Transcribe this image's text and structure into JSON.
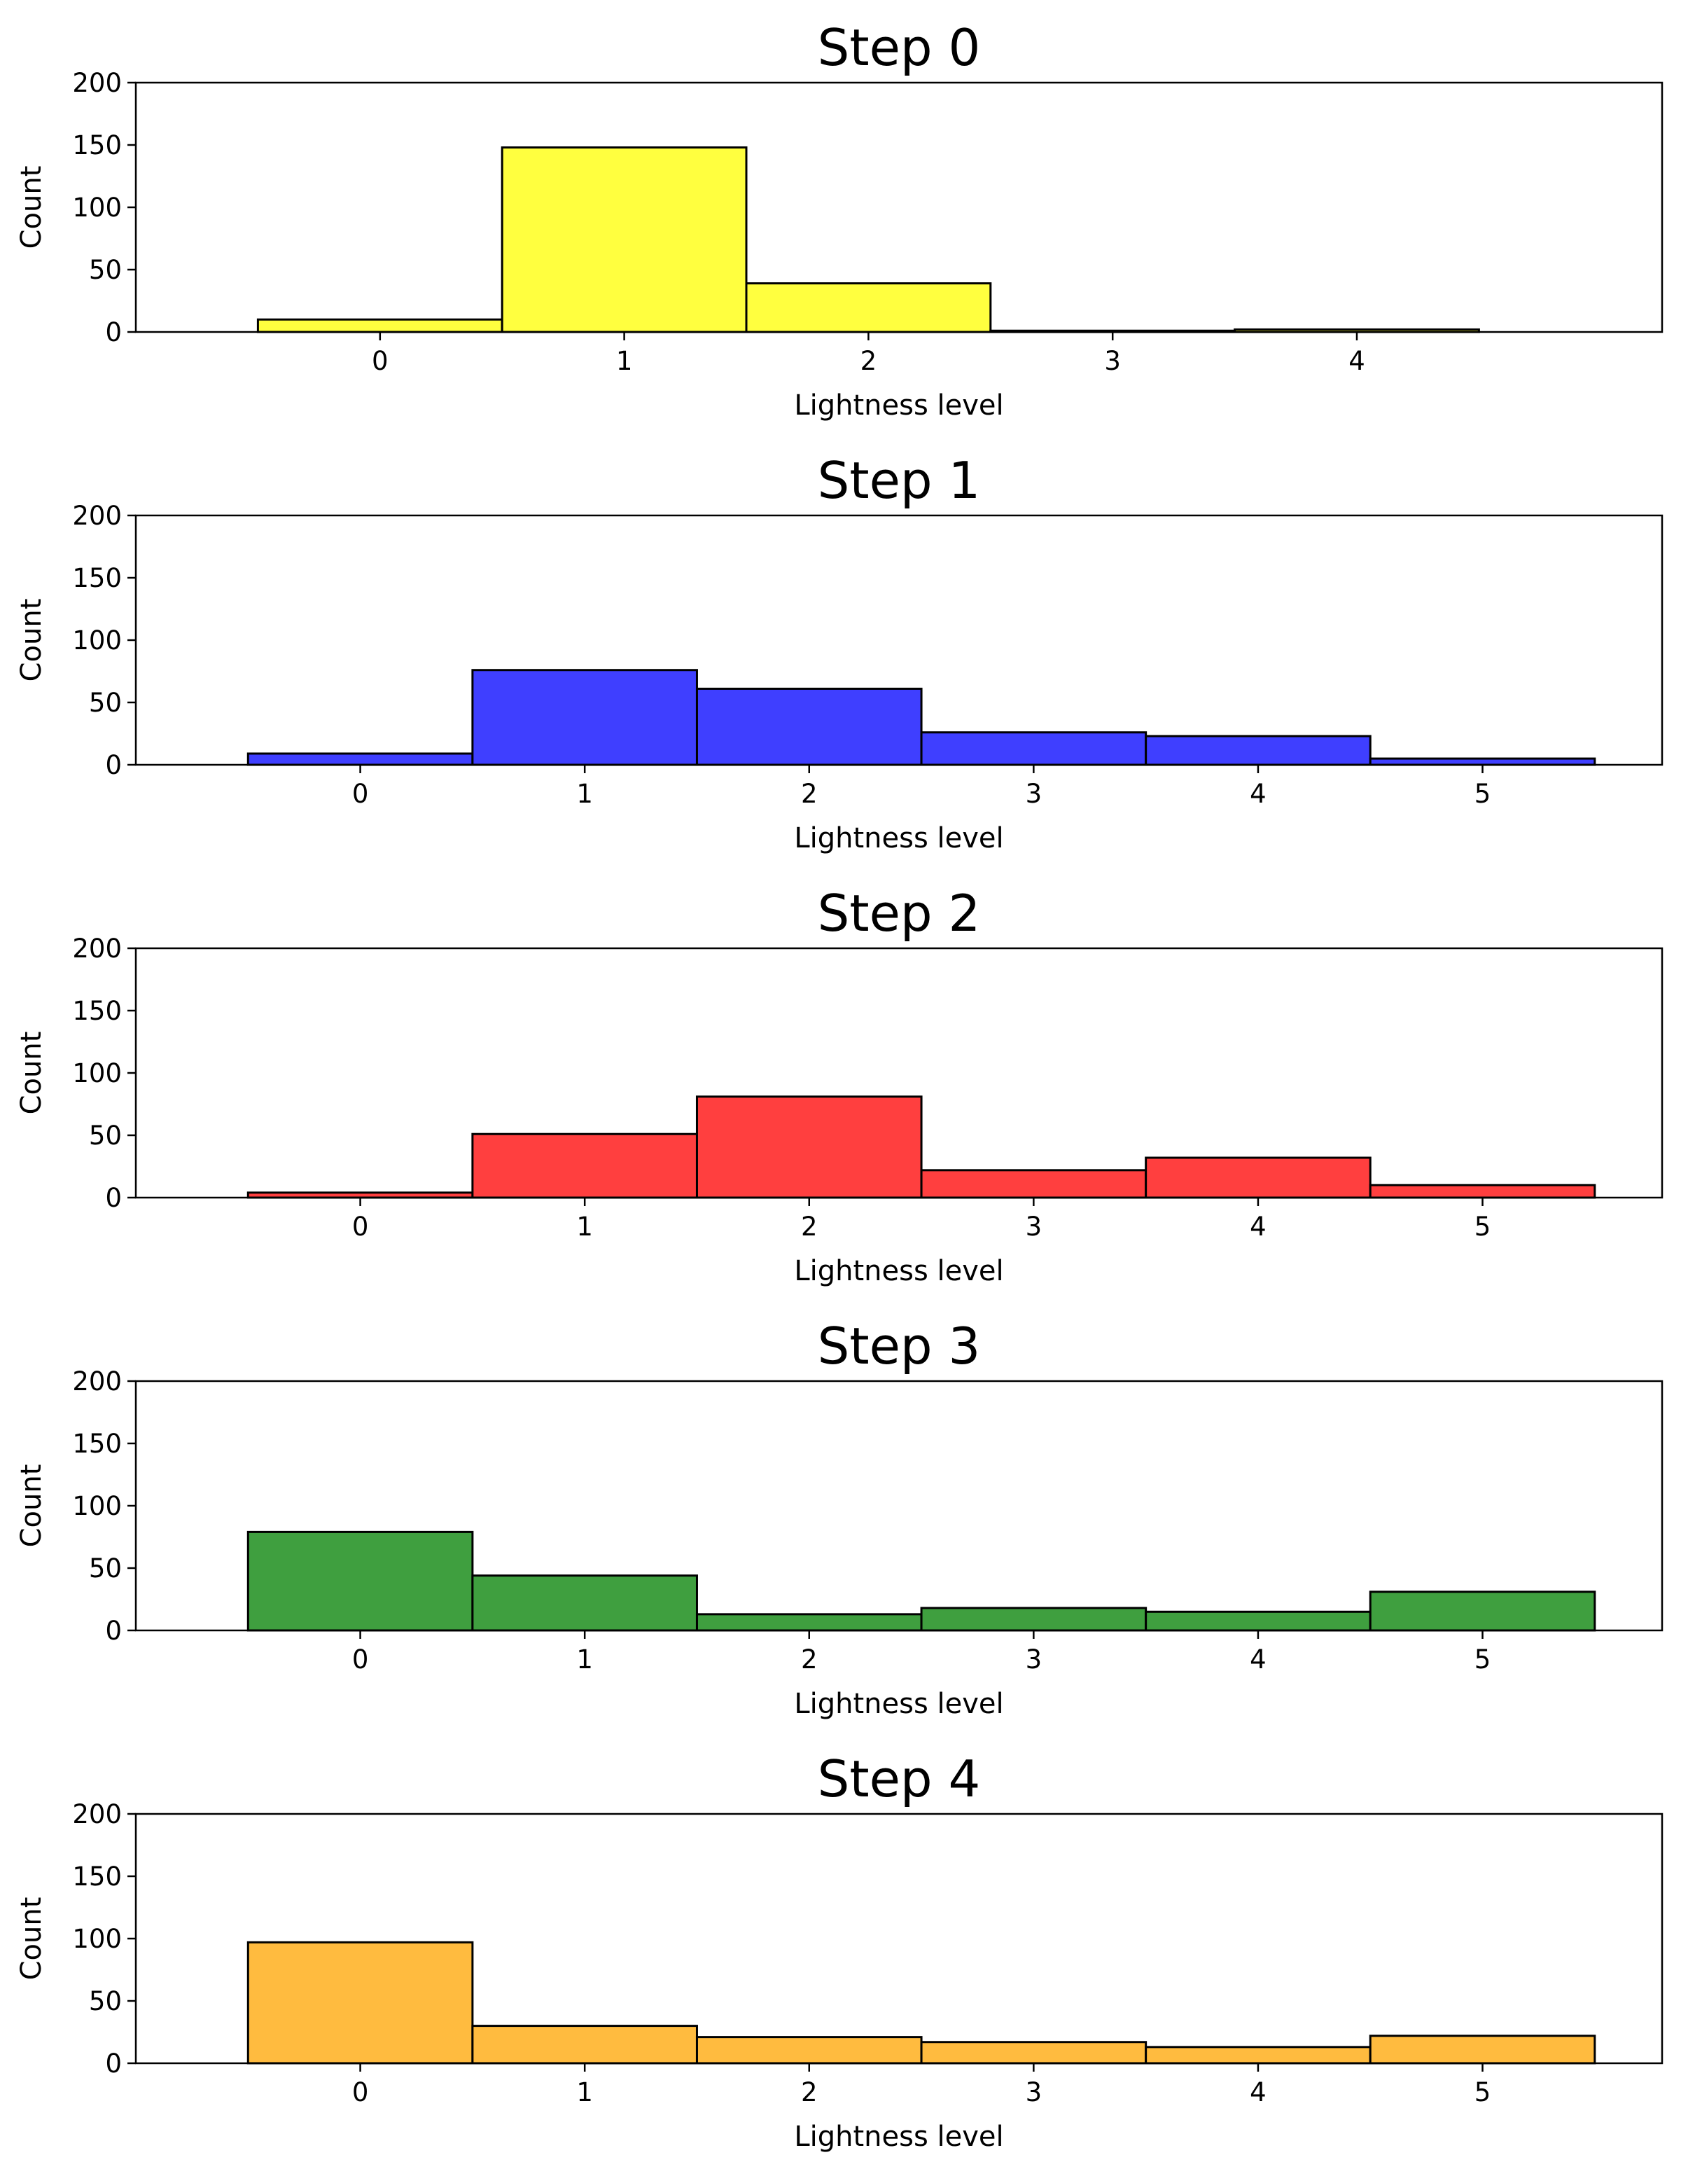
{
  "chart_data": [
    {
      "type": "bar",
      "title": "Step 0",
      "xlabel": "Lightness level",
      "ylabel": "Count",
      "color": "#ffff3f",
      "categories": [
        0,
        1,
        2,
        3,
        4
      ],
      "values": [
        10,
        148,
        39,
        1,
        2
      ],
      "xlim": [
        -1,
        5.25
      ],
      "ylim": [
        0,
        200
      ],
      "yticks": [
        0,
        50,
        100,
        150,
        200
      ],
      "xticks": [
        0,
        1,
        2,
        3,
        4
      ],
      "grid": false
    },
    {
      "type": "bar",
      "title": "Step 1",
      "xlabel": "Lightness level",
      "ylabel": "Count",
      "color": "#3f3fff",
      "categories": [
        0,
        1,
        2,
        3,
        4,
        5
      ],
      "values": [
        9,
        76,
        61,
        26,
        23,
        5
      ],
      "xlim": [
        -1,
        5.8
      ],
      "ylim": [
        0,
        200
      ],
      "yticks": [
        0,
        50,
        100,
        150,
        200
      ],
      "xticks": [
        0,
        1,
        2,
        3,
        4,
        5
      ],
      "grid": false
    },
    {
      "type": "bar",
      "title": "Step 2",
      "xlabel": "Lightness level",
      "ylabel": "Count",
      "color": "#ff3f3f",
      "categories": [
        0,
        1,
        2,
        3,
        4,
        5
      ],
      "values": [
        4,
        51,
        81,
        22,
        32,
        10
      ],
      "xlim": [
        -1,
        5.8
      ],
      "ylim": [
        0,
        200
      ],
      "yticks": [
        0,
        50,
        100,
        150,
        200
      ],
      "xticks": [
        0,
        1,
        2,
        3,
        4,
        5
      ],
      "grid": false
    },
    {
      "type": "bar",
      "title": "Step 3",
      "xlabel": "Lightness level",
      "ylabel": "Count",
      "color": "#3f9f3f",
      "categories": [
        0,
        1,
        2,
        3,
        4,
        5
      ],
      "values": [
        79,
        44,
        13,
        18,
        15,
        31
      ],
      "xlim": [
        -1,
        5.8
      ],
      "ylim": [
        0,
        200
      ],
      "yticks": [
        0,
        50,
        100,
        150,
        200
      ],
      "xticks": [
        0,
        1,
        2,
        3,
        4,
        5
      ],
      "grid": false
    },
    {
      "type": "bar",
      "title": "Step 4",
      "xlabel": "Lightness level",
      "ylabel": "Count",
      "color": "#ffbb3f",
      "categories": [
        0,
        1,
        2,
        3,
        4,
        5
      ],
      "values": [
        97,
        30,
        21,
        17,
        13,
        22
      ],
      "xlim": [
        -1,
        5.8
      ],
      "ylim": [
        0,
        200
      ],
      "yticks": [
        0,
        50,
        100,
        150,
        200
      ],
      "xticks": [
        0,
        1,
        2,
        3,
        4,
        5
      ],
      "grid": false
    }
  ]
}
